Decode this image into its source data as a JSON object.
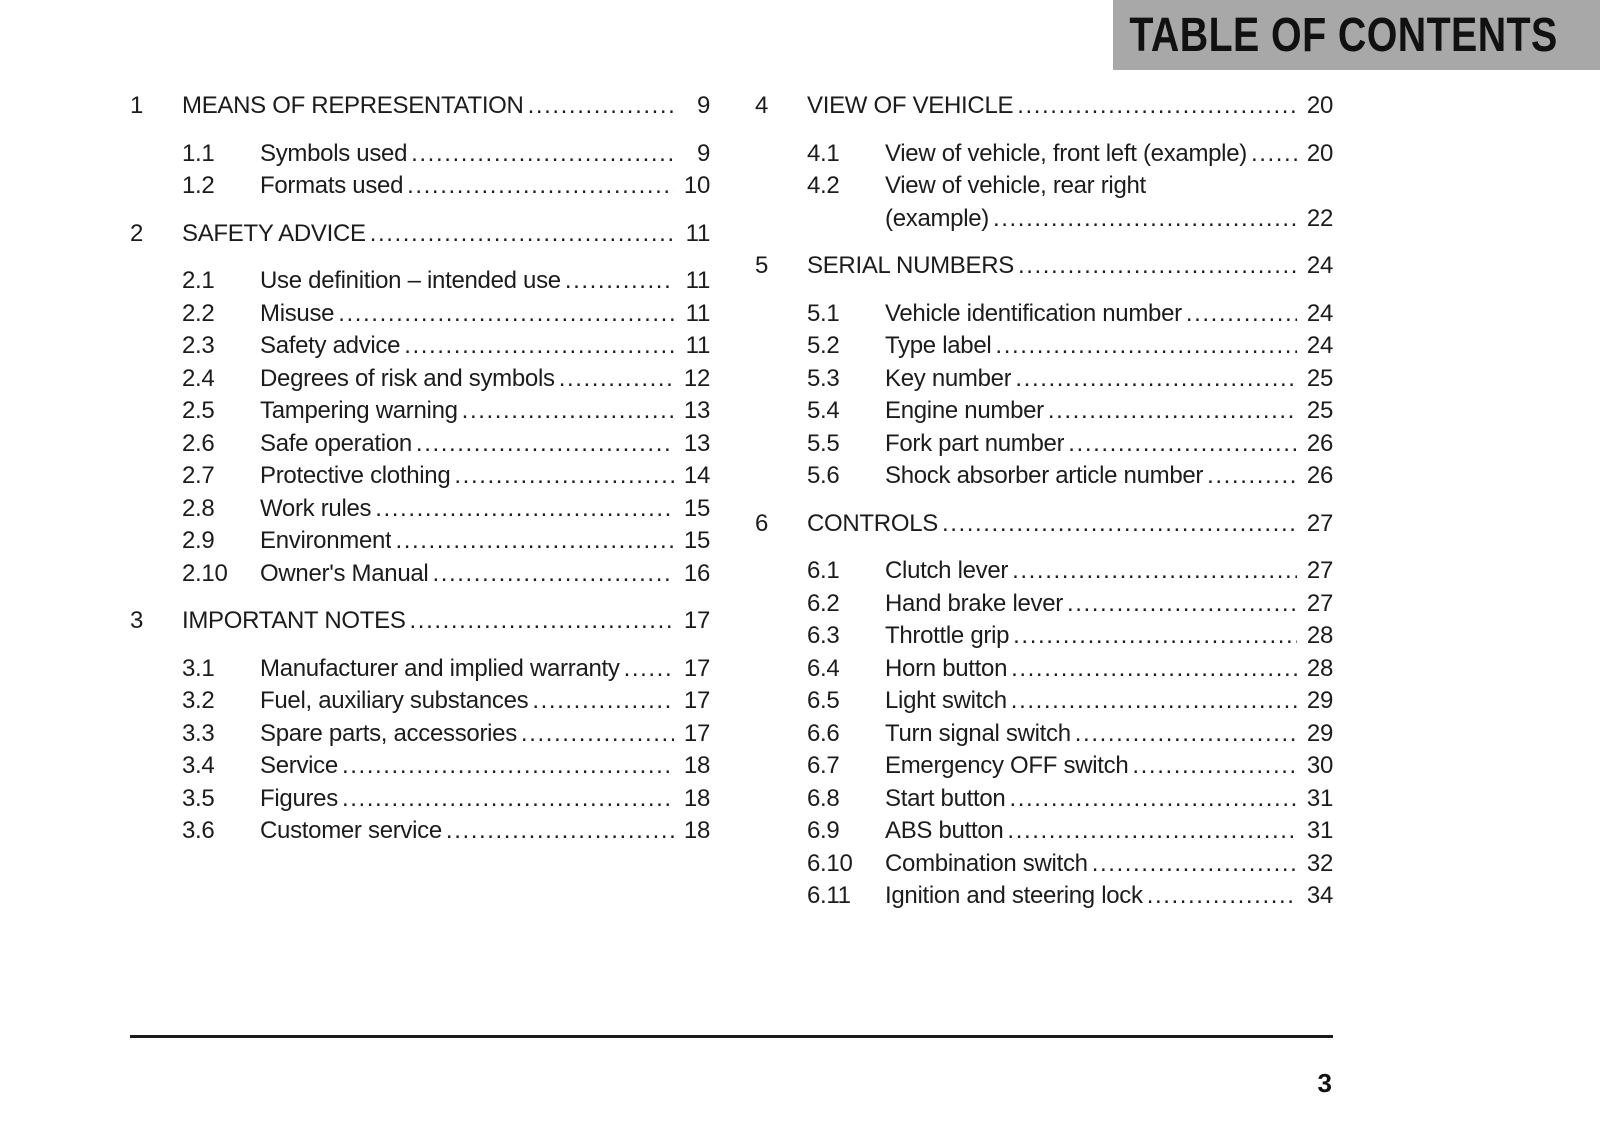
{
  "header": {
    "title": "TABLE OF CONTENTS"
  },
  "footer": {
    "page_number": "3"
  },
  "toc": {
    "columns": [
      {
        "sections": [
          {
            "number": "1",
            "title": "MEANS OF REPRESENTATION",
            "page": "9",
            "items": [
              {
                "number": "1.1",
                "title": "Symbols used",
                "page": "9"
              },
              {
                "number": "1.2",
                "title": "Formats used",
                "page": "10"
              }
            ]
          },
          {
            "number": "2",
            "title": "SAFETY ADVICE",
            "page": "11",
            "items": [
              {
                "number": "2.1",
                "title": "Use definition – intended use",
                "page": "11"
              },
              {
                "number": "2.2",
                "title": "Misuse",
                "page": "11"
              },
              {
                "number": "2.3",
                "title": "Safety advice",
                "page": "11"
              },
              {
                "number": "2.4",
                "title": "Degrees of risk and symbols",
                "page": "12"
              },
              {
                "number": "2.5",
                "title": "Tampering warning",
                "page": "13"
              },
              {
                "number": "2.6",
                "title": "Safe operation",
                "page": "13"
              },
              {
                "number": "2.7",
                "title": "Protective clothing",
                "page": "14"
              },
              {
                "number": "2.8",
                "title": "Work rules",
                "page": "15"
              },
              {
                "number": "2.9",
                "title": "Environment",
                "page": "15"
              },
              {
                "number": "2.10",
                "title": "Owner's Manual",
                "page": "16"
              }
            ]
          },
          {
            "number": "3",
            "title": "IMPORTANT NOTES",
            "page": "17",
            "items": [
              {
                "number": "3.1",
                "title": "Manufacturer and implied warranty",
                "page": "17"
              },
              {
                "number": "3.2",
                "title": "Fuel, auxiliary substances",
                "page": "17"
              },
              {
                "number": "3.3",
                "title": "Spare parts, accessories",
                "page": "17"
              },
              {
                "number": "3.4",
                "title": "Service",
                "page": "18"
              },
              {
                "number": "3.5",
                "title": "Figures",
                "page": "18"
              },
              {
                "number": "3.6",
                "title": "Customer service",
                "page": "18"
              }
            ]
          }
        ]
      },
      {
        "sections": [
          {
            "number": "4",
            "title": "VIEW OF VEHICLE",
            "page": "20",
            "items": [
              {
                "number": "4.1",
                "title": "View of vehicle, front left (example)",
                "page": "20"
              },
              {
                "number": "4.2",
                "title": "View of vehicle, rear right",
                "title2": "(example)",
                "page": "22"
              }
            ]
          },
          {
            "number": "5",
            "title": "SERIAL NUMBERS",
            "page": "24",
            "items": [
              {
                "number": "5.1",
                "title": "Vehicle identification number",
                "page": "24"
              },
              {
                "number": "5.2",
                "title": "Type label",
                "page": "24"
              },
              {
                "number": "5.3",
                "title": "Key number",
                "page": "25"
              },
              {
                "number": "5.4",
                "title": "Engine number",
                "page": "25"
              },
              {
                "number": "5.5",
                "title": "Fork part number",
                "page": "26"
              },
              {
                "number": "5.6",
                "title": "Shock absorber article number",
                "page": "26"
              }
            ]
          },
          {
            "number": "6",
            "title": "CONTROLS",
            "page": "27",
            "items": [
              {
                "number": "6.1",
                "title": "Clutch lever",
                "page": "27"
              },
              {
                "number": "6.2",
                "title": "Hand brake lever",
                "page": "27"
              },
              {
                "number": "6.3",
                "title": "Throttle grip",
                "page": "28"
              },
              {
                "number": "6.4",
                "title": "Horn button",
                "page": "28"
              },
              {
                "number": "6.5",
                "title": "Light switch",
                "page": "29"
              },
              {
                "number": "6.6",
                "title": "Turn signal switch",
                "page": "29"
              },
              {
                "number": "6.7",
                "title": "Emergency OFF switch",
                "page": "30"
              },
              {
                "number": "6.8",
                "title": "Start button",
                "page": "31"
              },
              {
                "number": "6.9",
                "title": "ABS button",
                "page": "31"
              },
              {
                "number": "6.10",
                "title": "Combination switch",
                "page": "32"
              },
              {
                "number": "6.11",
                "title": "Ignition and steering lock",
                "page": "34"
              }
            ]
          }
        ]
      }
    ]
  }
}
